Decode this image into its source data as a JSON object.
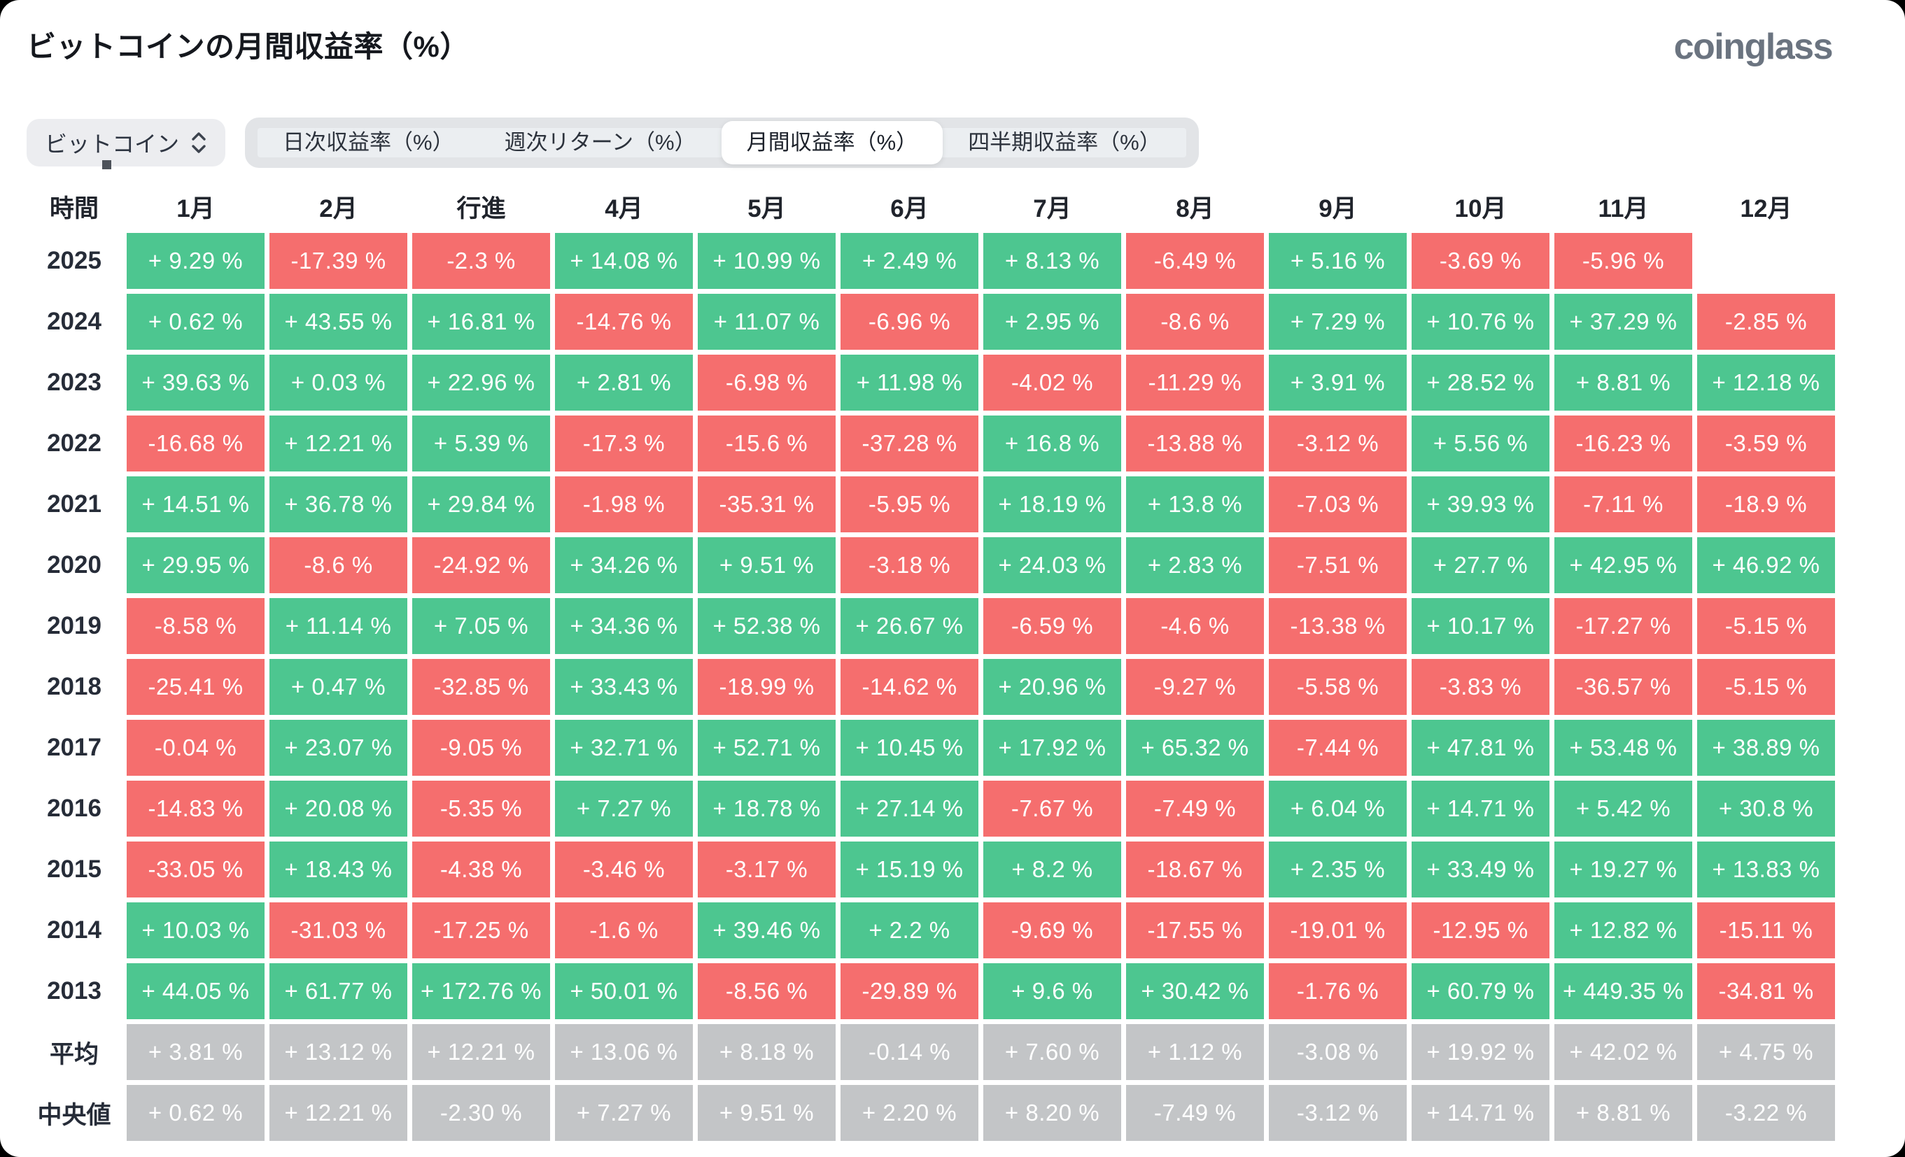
{
  "title": "ビットコインの月間収益率（%）",
  "logo": "coinglass",
  "controls": {
    "coin_select": {
      "label": "ビットコイン"
    },
    "tabs": [
      {
        "label": "日次収益率（%）",
        "active": false
      },
      {
        "label": "週次リターン（%）",
        "active": false
      },
      {
        "label": "月間収益率（%）",
        "active": true
      },
      {
        "label": "四半期収益率（%）",
        "active": false
      }
    ]
  },
  "chart_data": {
    "type": "heatmap",
    "title": "ビットコインの月間収益率（%）",
    "row_header": "時間",
    "columns": [
      "1月",
      "2月",
      "行進",
      "4月",
      "5月",
      "6月",
      "7月",
      "8月",
      "9月",
      "10月",
      "11月",
      "12月"
    ],
    "colors": {
      "positive": "#4DC690",
      "negative": "#F56E6E",
      "summary": "#C3C5C7"
    },
    "rows": [
      {
        "label": "2025",
        "type": "year",
        "values": [
          9.29,
          -17.39,
          -2.3,
          14.08,
          10.99,
          2.49,
          8.13,
          -6.49,
          5.16,
          -3.69,
          -5.96,
          null
        ],
        "display": [
          "+ 9.29 %",
          "-17.39 %",
          "-2.3 %",
          "+ 14.08 %",
          "+ 10.99 %",
          "+ 2.49 %",
          "+ 8.13 %",
          "-6.49 %",
          "+ 5.16 %",
          "-3.69 %",
          "-5.96 %",
          ""
        ]
      },
      {
        "label": "2024",
        "type": "year",
        "values": [
          0.62,
          43.55,
          16.81,
          -14.76,
          11.07,
          -6.96,
          2.95,
          -8.6,
          7.29,
          10.76,
          37.29,
          -2.85
        ],
        "display": [
          "+ 0.62 %",
          "+ 43.55 %",
          "+ 16.81 %",
          "-14.76 %",
          "+ 11.07 %",
          "-6.96 %",
          "+ 2.95 %",
          "-8.6 %",
          "+ 7.29 %",
          "+ 10.76 %",
          "+ 37.29 %",
          "-2.85 %"
        ]
      },
      {
        "label": "2023",
        "type": "year",
        "values": [
          39.63,
          0.03,
          22.96,
          2.81,
          -6.98,
          11.98,
          -4.02,
          -11.29,
          3.91,
          28.52,
          8.81,
          12.18
        ],
        "display": [
          "+ 39.63 %",
          "+ 0.03 %",
          "+ 22.96 %",
          "+ 2.81 %",
          "-6.98 %",
          "+ 11.98 %",
          "-4.02 %",
          "-11.29 %",
          "+ 3.91 %",
          "+ 28.52 %",
          "+ 8.81 %",
          "+ 12.18 %"
        ]
      },
      {
        "label": "2022",
        "type": "year",
        "values": [
          -16.68,
          12.21,
          5.39,
          -17.3,
          -15.6,
          -37.28,
          16.8,
          -13.88,
          -3.12,
          5.56,
          -16.23,
          -3.59
        ],
        "display": [
          "-16.68 %",
          "+ 12.21 %",
          "+ 5.39 %",
          "-17.3 %",
          "-15.6 %",
          "-37.28 %",
          "+ 16.8 %",
          "-13.88 %",
          "-3.12 %",
          "+ 5.56 %",
          "-16.23 %",
          "-3.59 %"
        ]
      },
      {
        "label": "2021",
        "type": "year",
        "values": [
          14.51,
          36.78,
          29.84,
          -1.98,
          -35.31,
          -5.95,
          18.19,
          13.8,
          -7.03,
          39.93,
          -7.11,
          -18.9
        ],
        "display": [
          "+ 14.51 %",
          "+ 36.78 %",
          "+ 29.84 %",
          "-1.98 %",
          "-35.31 %",
          "-5.95 %",
          "+ 18.19 %",
          "+ 13.8 %",
          "-7.03 %",
          "+ 39.93 %",
          "-7.11 %",
          "-18.9 %"
        ]
      },
      {
        "label": "2020",
        "type": "year",
        "values": [
          29.95,
          -8.6,
          -24.92,
          34.26,
          9.51,
          -3.18,
          24.03,
          2.83,
          -7.51,
          27.7,
          42.95,
          46.92
        ],
        "display": [
          "+ 29.95 %",
          "-8.6 %",
          "-24.92 %",
          "+ 34.26 %",
          "+ 9.51 %",
          "-3.18 %",
          "+ 24.03 %",
          "+ 2.83 %",
          "-7.51 %",
          "+ 27.7 %",
          "+ 42.95 %",
          "+ 46.92 %"
        ]
      },
      {
        "label": "2019",
        "type": "year",
        "values": [
          -8.58,
          11.14,
          7.05,
          34.36,
          52.38,
          26.67,
          -6.59,
          -4.6,
          -13.38,
          10.17,
          -17.27,
          -5.15
        ],
        "display": [
          "-8.58 %",
          "+ 11.14 %",
          "+ 7.05 %",
          "+ 34.36 %",
          "+ 52.38 %",
          "+ 26.67 %",
          "-6.59 %",
          "-4.6 %",
          "-13.38 %",
          "+ 10.17 %",
          "-17.27 %",
          "-5.15 %"
        ]
      },
      {
        "label": "2018",
        "type": "year",
        "values": [
          -25.41,
          0.47,
          -32.85,
          33.43,
          -18.99,
          -14.62,
          20.96,
          -9.27,
          -5.58,
          -3.83,
          -36.57,
          -5.15
        ],
        "display": [
          "-25.41 %",
          "+ 0.47 %",
          "-32.85 %",
          "+ 33.43 %",
          "-18.99 %",
          "-14.62 %",
          "+ 20.96 %",
          "-9.27 %",
          "-5.58 %",
          "-3.83 %",
          "-36.57 %",
          "-5.15 %"
        ]
      },
      {
        "label": "2017",
        "type": "year",
        "values": [
          -0.04,
          23.07,
          -9.05,
          32.71,
          52.71,
          10.45,
          17.92,
          65.32,
          -7.44,
          47.81,
          53.48,
          38.89
        ],
        "display": [
          "-0.04 %",
          "+ 23.07 %",
          "-9.05 %",
          "+ 32.71 %",
          "+ 52.71 %",
          "+ 10.45 %",
          "+ 17.92 %",
          "+ 65.32 %",
          "-7.44 %",
          "+ 47.81 %",
          "+ 53.48 %",
          "+ 38.89 %"
        ]
      },
      {
        "label": "2016",
        "type": "year",
        "values": [
          -14.83,
          20.08,
          -5.35,
          7.27,
          18.78,
          27.14,
          -7.67,
          -7.49,
          6.04,
          14.71,
          5.42,
          30.8
        ],
        "display": [
          "-14.83 %",
          "+ 20.08 %",
          "-5.35 %",
          "+ 7.27 %",
          "+ 18.78 %",
          "+ 27.14 %",
          "-7.67 %",
          "-7.49 %",
          "+ 6.04 %",
          "+ 14.71 %",
          "+ 5.42 %",
          "+ 30.8 %"
        ]
      },
      {
        "label": "2015",
        "type": "year",
        "values": [
          -33.05,
          18.43,
          -4.38,
          -3.46,
          -3.17,
          15.19,
          8.2,
          -18.67,
          2.35,
          33.49,
          19.27,
          13.83
        ],
        "display": [
          "-33.05 %",
          "+ 18.43 %",
          "-4.38 %",
          "-3.46 %",
          "-3.17 %",
          "+ 15.19 %",
          "+ 8.2 %",
          "-18.67 %",
          "+ 2.35 %",
          "+ 33.49 %",
          "+ 19.27 %",
          "+ 13.83 %"
        ]
      },
      {
        "label": "2014",
        "type": "year",
        "values": [
          10.03,
          -31.03,
          -17.25,
          -1.6,
          39.46,
          2.2,
          -9.69,
          -17.55,
          -19.01,
          -12.95,
          12.82,
          -15.11
        ],
        "display": [
          "+ 10.03 %",
          "-31.03 %",
          "-17.25 %",
          "-1.6 %",
          "+ 39.46 %",
          "+ 2.2 %",
          "-9.69 %",
          "-17.55 %",
          "-19.01 %",
          "-12.95 %",
          "+ 12.82 %",
          "-15.11 %"
        ]
      },
      {
        "label": "2013",
        "type": "year",
        "values": [
          44.05,
          61.77,
          172.76,
          50.01,
          -8.56,
          -29.89,
          9.6,
          30.42,
          -1.76,
          60.79,
          449.35,
          -34.81
        ],
        "display": [
          "+ 44.05 %",
          "+ 61.77 %",
          "+ 172.76 %",
          "+ 50.01 %",
          "-8.56 %",
          "-29.89 %",
          "+ 9.6 %",
          "+ 30.42 %",
          "-1.76 %",
          "+ 60.79 %",
          "+ 449.35 %",
          "-34.81 %"
        ]
      },
      {
        "label": "平均",
        "type": "summary",
        "values": [
          3.81,
          13.12,
          12.21,
          13.06,
          8.18,
          -0.14,
          7.6,
          1.12,
          -3.08,
          19.92,
          42.02,
          4.75
        ],
        "display": [
          "+ 3.81 %",
          "+ 13.12 %",
          "+ 12.21 %",
          "+ 13.06 %",
          "+ 8.18 %",
          "-0.14 %",
          "+ 7.60 %",
          "+ 1.12 %",
          "-3.08 %",
          "+ 19.92 %",
          "+ 42.02 %",
          "+ 4.75 %"
        ]
      },
      {
        "label": "中央値",
        "type": "summary",
        "values": [
          0.62,
          12.21,
          -2.3,
          7.27,
          9.51,
          2.2,
          8.2,
          -7.49,
          -3.12,
          14.71,
          8.81,
          -3.22
        ],
        "display": [
          "+ 0.62 %",
          "+ 12.21 %",
          "-2.30 %",
          "+ 7.27 %",
          "+ 9.51 %",
          "+ 2.20 %",
          "+ 8.20 %",
          "-7.49 %",
          "-3.12 %",
          "+ 14.71 %",
          "+ 8.81 %",
          "-3.22 %"
        ]
      }
    ]
  }
}
